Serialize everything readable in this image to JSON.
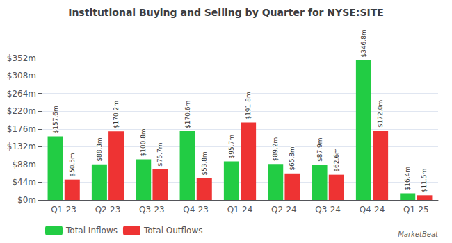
{
  "chart_data": {
    "type": "bar",
    "title": "Institutional Buying and Selling by Quarter for NYSE:SITE",
    "categories": [
      "Q1-23",
      "Q2-23",
      "Q3-23",
      "Q4-23",
      "Q1-24",
      "Q2-24",
      "Q3-24",
      "Q4-24",
      "Q1-25"
    ],
    "series": [
      {
        "name": "Total Inflows",
        "color": "#22cc44",
        "values": [
          157.6,
          88.3,
          100.8,
          170.6,
          95.7,
          89.2,
          87.9,
          346.8,
          16.4
        ],
        "value_labels": [
          "$157.6m",
          "$88.3m",
          "$100.8m",
          "$170.6m",
          "$95.7m",
          "$89.2m",
          "$87.9m",
          "$346.8m",
          "$16.4m"
        ]
      },
      {
        "name": "Total Outflows",
        "color": "#ee3333",
        "values": [
          50.5,
          170.2,
          75.7,
          53.8,
          191.8,
          65.8,
          62.6,
          172.0,
          11.5
        ],
        "value_labels": [
          "$50.5m",
          "$170.2m",
          "$75.7m",
          "$53.8m",
          "$191.8m",
          "$65.8m",
          "$62.6m",
          "$172.0m",
          "$11.5m"
        ]
      }
    ],
    "ylim": [
      0,
      396
    ],
    "yticks": [
      {
        "value": 0,
        "label": "$0m"
      },
      {
        "value": 44,
        "label": "$44m"
      },
      {
        "value": 88,
        "label": "$88m"
      },
      {
        "value": 132,
        "label": "$132m"
      },
      {
        "value": 176,
        "label": "$176m"
      },
      {
        "value": 220,
        "label": "$220m"
      },
      {
        "value": 264,
        "label": "$264m"
      },
      {
        "value": 308,
        "label": "$308m"
      },
      {
        "value": 352,
        "label": "$352m"
      }
    ],
    "grid": true,
    "data_labels": true,
    "legend": "lower left",
    "annotations": [
      "MarketBeat"
    ]
  }
}
